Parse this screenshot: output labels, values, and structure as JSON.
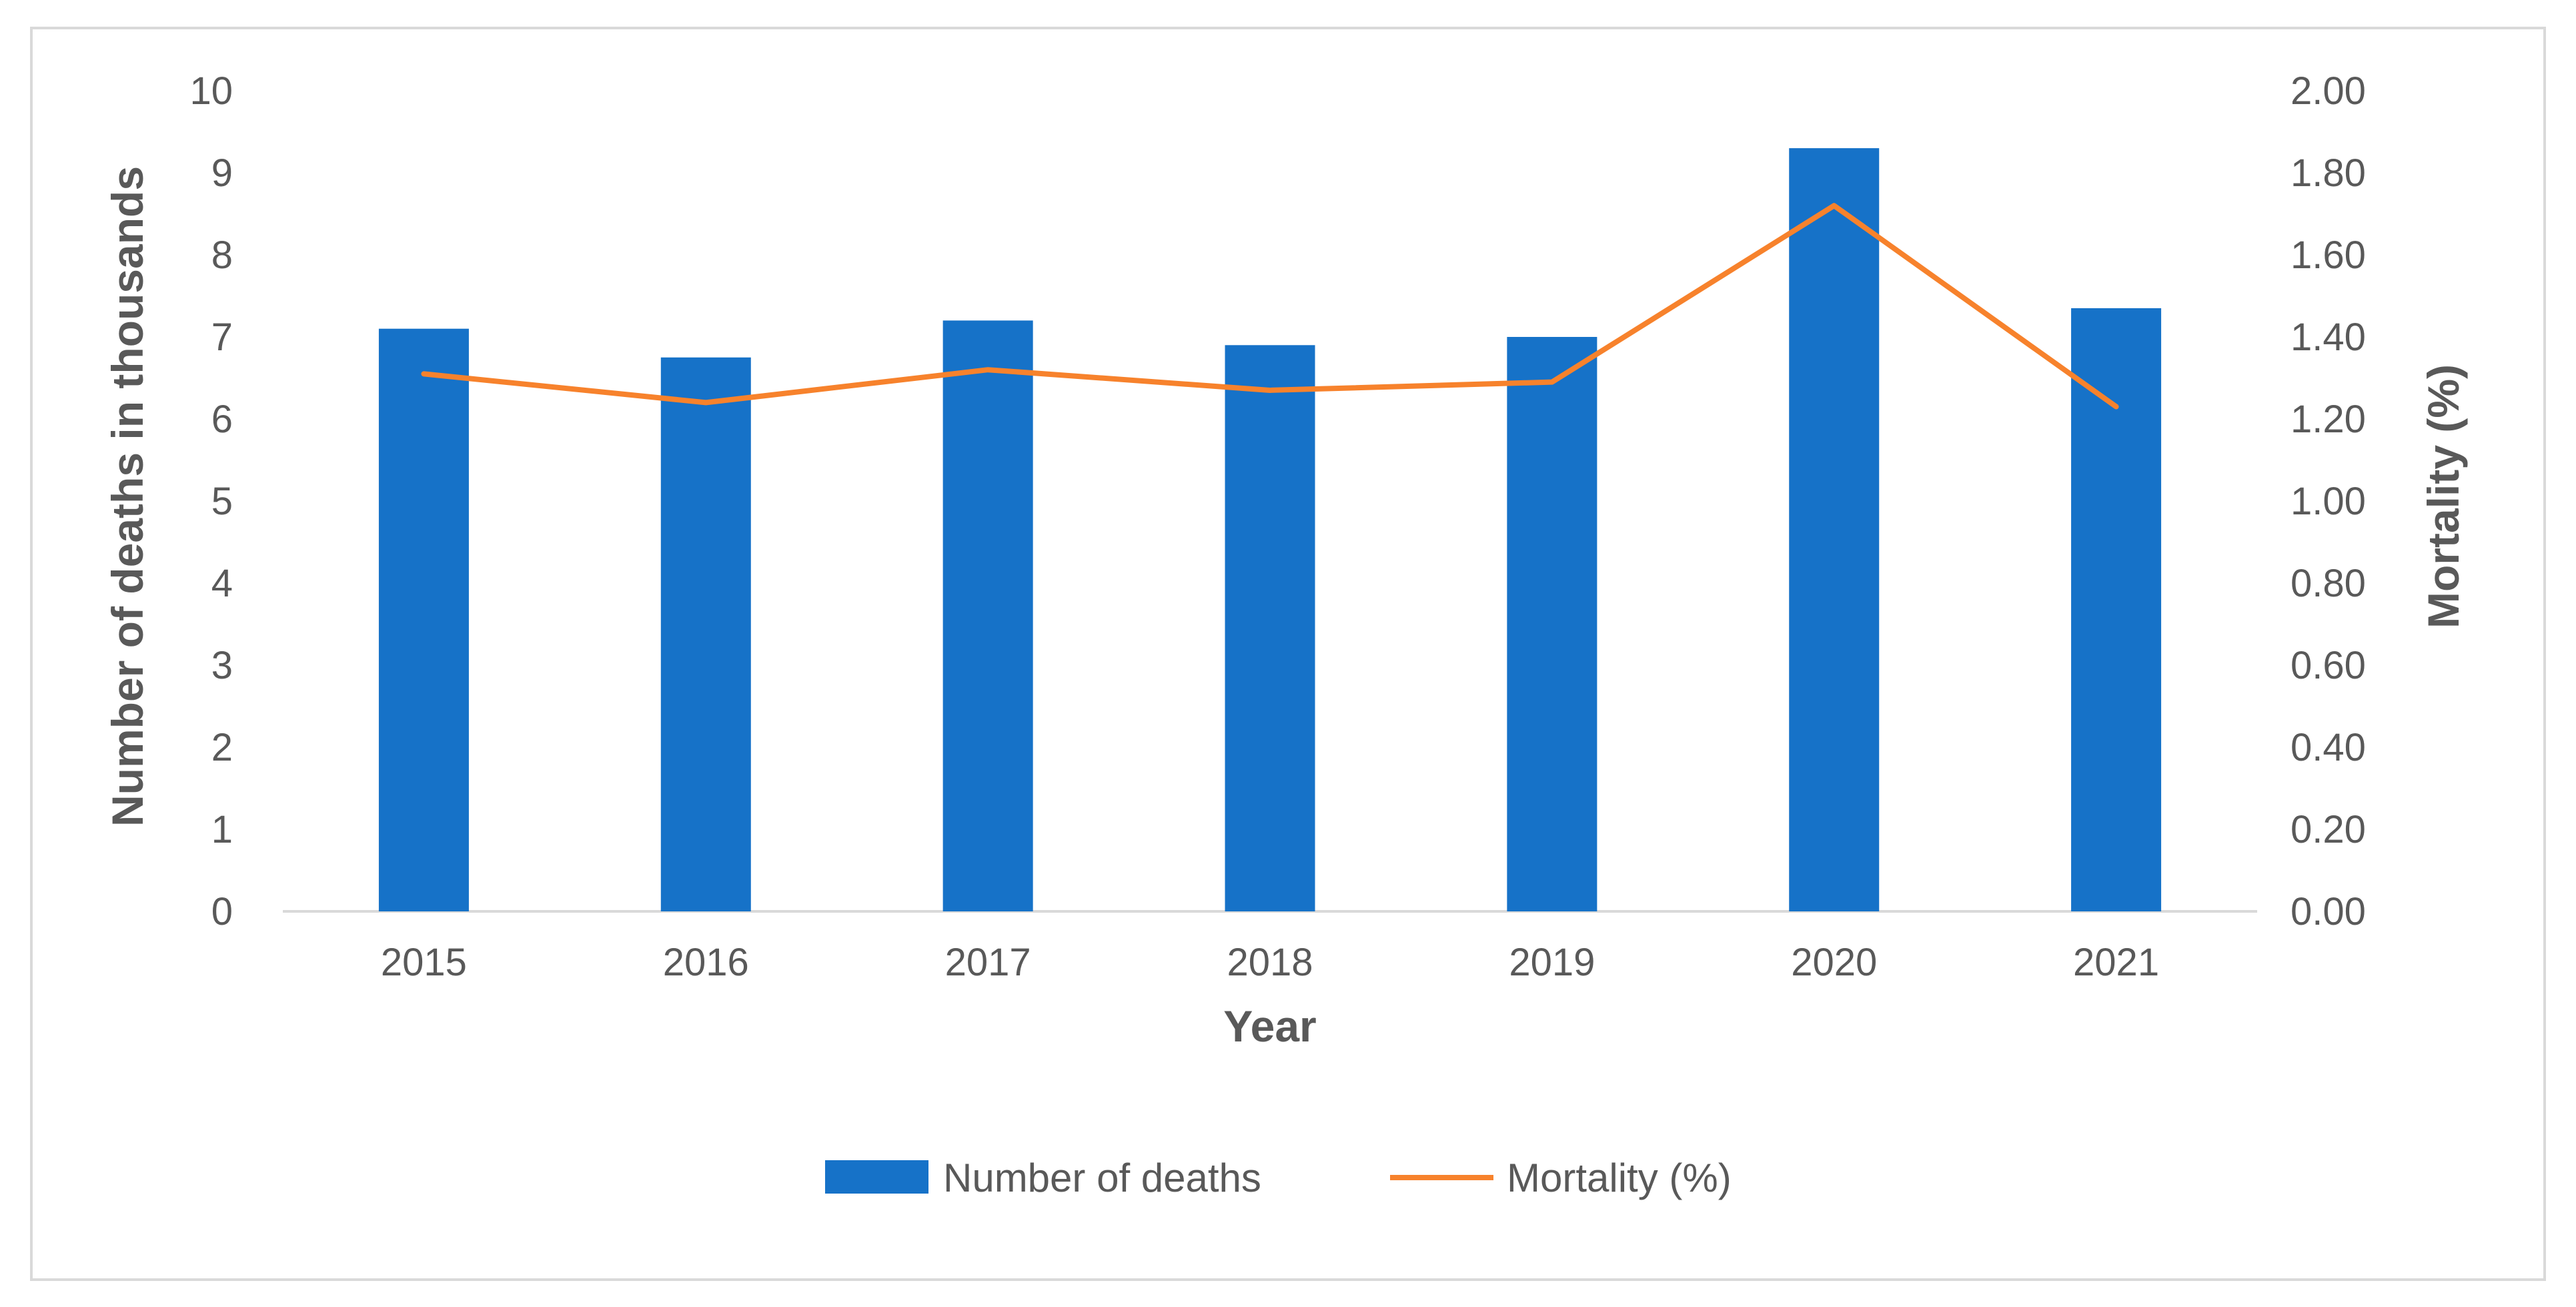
{
  "chart_data": {
    "type": "bar",
    "title": "",
    "categories": [
      "2015",
      "2016",
      "2017",
      "2018",
      "2019",
      "2020",
      "2021"
    ],
    "xlabel": "Year",
    "series": [
      {
        "name": "Number of deaths",
        "type": "bar",
        "axis": "left",
        "color": "#1672C8",
        "values": [
          7.1,
          6.75,
          7.2,
          6.9,
          7.0,
          9.3,
          7.35
        ]
      },
      {
        "name": "Mortality (%)",
        "type": "line",
        "axis": "right",
        "color": "#F7822C",
        "values": [
          1.31,
          1.24,
          1.32,
          1.27,
          1.29,
          1.72,
          1.23
        ]
      }
    ],
    "y_left": {
      "label": "Number of deaths in thousands",
      "ylim": [
        0,
        10
      ],
      "ticks": [
        "0",
        "1",
        "2",
        "3",
        "4",
        "5",
        "6",
        "7",
        "8",
        "9",
        "10"
      ]
    },
    "y_right": {
      "label": "Mortality (%)",
      "ylim": [
        0,
        2
      ],
      "ticks": [
        "0.00",
        "0.20",
        "0.40",
        "0.60",
        "0.80",
        "1.00",
        "1.20",
        "1.40",
        "1.60",
        "1.80",
        "2.00"
      ]
    },
    "grid": false,
    "legend_position": "bottom",
    "axis_color": "#d9d9d9",
    "text_color": "#595959"
  }
}
